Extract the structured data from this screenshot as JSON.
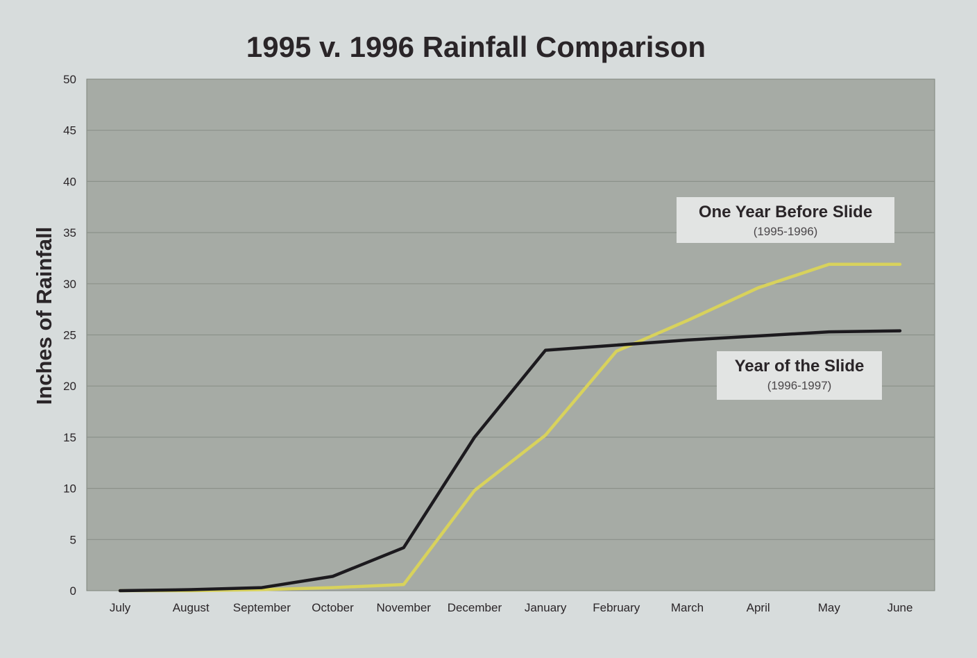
{
  "chart_data": {
    "type": "line",
    "title": "1995 v. 1996 Rainfall Comparison",
    "ylabel": "Inches of Rainfall",
    "xlabel": "",
    "ylim": [
      0,
      50
    ],
    "yticks": [
      0,
      5,
      10,
      15,
      20,
      25,
      30,
      35,
      40,
      45,
      50
    ],
    "categories": [
      "July",
      "August",
      "September",
      "October",
      "November",
      "December",
      "January",
      "February",
      "March",
      "April",
      "May",
      "June"
    ],
    "grid": true,
    "series": [
      {
        "name": "Year of the Slide",
        "sub": "(1996-1997)",
        "color": "#1c1a1e",
        "values": [
          0.0,
          0.1,
          0.3,
          1.4,
          4.2,
          15.0,
          23.5,
          24.0,
          24.5,
          24.9,
          25.3,
          25.4
        ]
      },
      {
        "name": "One Year Before Slide",
        "sub": "(1995-1996)",
        "color": "#d8d25c",
        "values": [
          0.0,
          0.0,
          0.1,
          0.3,
          0.6,
          9.8,
          15.2,
          23.4,
          26.4,
          29.6,
          31.9,
          31.9
        ]
      }
    ],
    "colors": {
      "background": "#d7dcdc",
      "plot_area": "#a6aba5",
      "gridline": "#8b918a",
      "label_box": "#e2e4e3",
      "text": "#2a2528"
    }
  }
}
